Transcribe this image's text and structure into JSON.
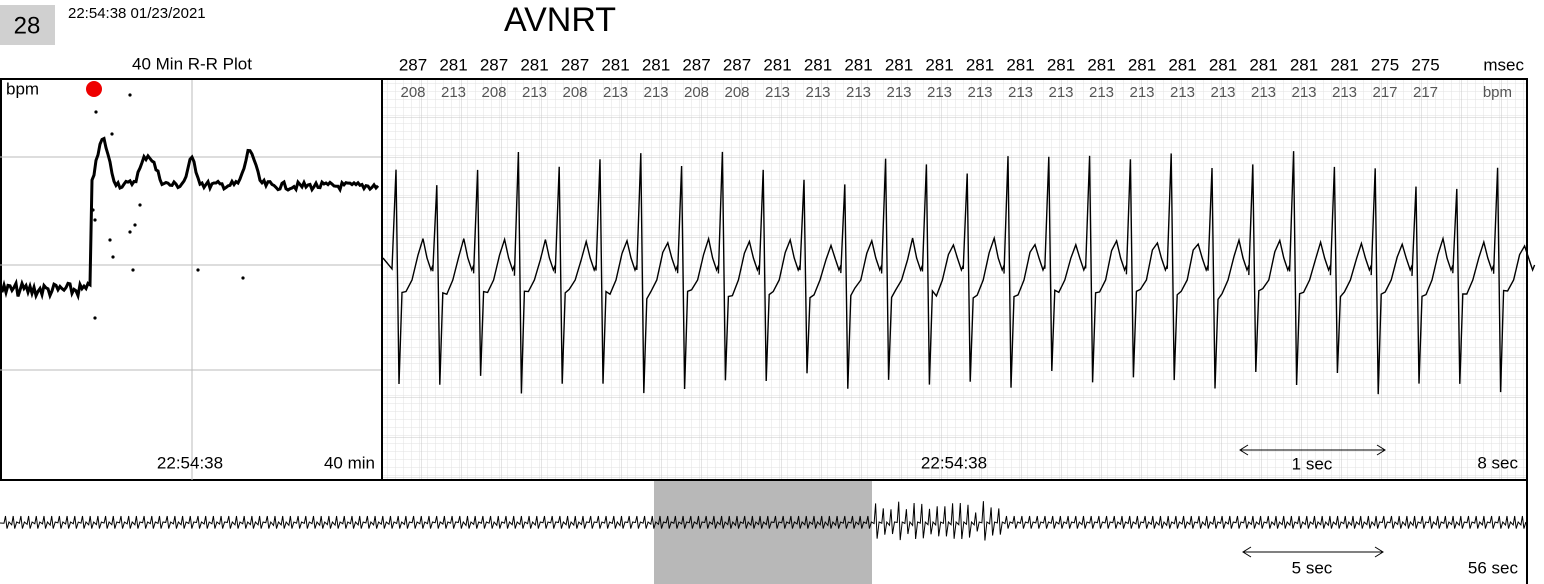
{
  "header": {
    "record_number": "28",
    "timestamp": "22:54:38 01/23/2021",
    "title": "AVNRT"
  },
  "rr_plot": {
    "title": "40 Min R-R Plot",
    "y_unit": "bpm",
    "time_label": "22:54:38",
    "span_label": "40 min"
  },
  "strip": {
    "rr_intervals": [
      287,
      281,
      287,
      281,
      287,
      281,
      281,
      287,
      287,
      281,
      281,
      281,
      281,
      281,
      281,
      281,
      281,
      281,
      281,
      281,
      281,
      281,
      281,
      281,
      275,
      275
    ],
    "rr_unit": "msec",
    "heart_rates": [
      208,
      213,
      208,
      213,
      208,
      213,
      213,
      208,
      208,
      213,
      213,
      213,
      213,
      213,
      213,
      213,
      213,
      213,
      213,
      213,
      213,
      213,
      213,
      213,
      217,
      217
    ],
    "hr_unit": "bpm",
    "time_label": "22:54:38",
    "scale_label": "1 sec",
    "span_label": "8 sec"
  },
  "overview": {
    "scale_label": "5 sec",
    "span_label": "56 sec"
  }
}
